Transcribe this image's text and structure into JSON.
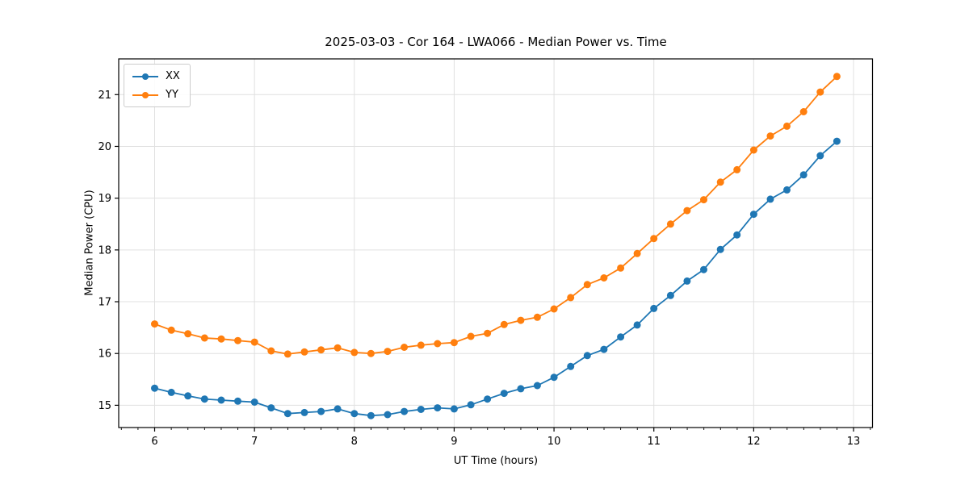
{
  "chart_data": {
    "type": "line",
    "title": "2025-03-03 - Cor 164 - LWA066 - Median Power vs. Time",
    "xlabel": "UT Time (hours)",
    "ylabel": "Median Power (CPU)",
    "xlim": [
      5.64,
      13.19
    ],
    "ylim": [
      14.57,
      21.69
    ],
    "x_ticks": [
      6,
      7,
      8,
      9,
      10,
      11,
      12,
      13
    ],
    "y_ticks": [
      15,
      16,
      17,
      18,
      19,
      20,
      21
    ],
    "x_minor_tick_step": 0.1667,
    "grid": true,
    "legend_position": "upper-left",
    "x": [
      6.0,
      6.167,
      6.333,
      6.5,
      6.667,
      6.833,
      7.0,
      7.167,
      7.333,
      7.5,
      7.667,
      7.833,
      8.0,
      8.167,
      8.333,
      8.5,
      8.667,
      8.833,
      9.0,
      9.167,
      9.333,
      9.5,
      9.667,
      9.833,
      10.0,
      10.167,
      10.333,
      10.5,
      10.667,
      10.833,
      11.0,
      11.167,
      11.333,
      11.5,
      11.667,
      11.833,
      12.0,
      12.167,
      12.333,
      12.5,
      12.667,
      12.833
    ],
    "series": [
      {
        "name": "XX",
        "color": "#1f77b4",
        "values": [
          15.33,
          15.25,
          15.18,
          15.12,
          15.1,
          15.08,
          15.06,
          14.95,
          14.84,
          14.86,
          14.88,
          14.93,
          14.84,
          14.8,
          14.82,
          14.88,
          14.92,
          14.95,
          14.93,
          15.01,
          15.12,
          15.23,
          15.32,
          15.38,
          15.54,
          15.75,
          15.96,
          16.08,
          16.32,
          16.55,
          16.87,
          17.12,
          17.4,
          17.62,
          18.01,
          18.29,
          18.69,
          18.98,
          19.16,
          19.45,
          19.82,
          20.1
        ]
      },
      {
        "name": "YY",
        "color": "#ff7f0e",
        "values": [
          16.57,
          16.45,
          16.38,
          16.3,
          16.28,
          16.25,
          16.22,
          16.05,
          15.99,
          16.03,
          16.07,
          16.11,
          16.02,
          16.0,
          16.04,
          16.12,
          16.16,
          16.19,
          16.21,
          16.33,
          16.39,
          16.56,
          16.64,
          16.7,
          16.86,
          17.08,
          17.33,
          17.46,
          17.65,
          17.93,
          18.22,
          18.5,
          18.76,
          18.97,
          19.31,
          19.55,
          19.93,
          20.2,
          20.39,
          20.67,
          21.05,
          21.35
        ]
      }
    ],
    "style": {
      "grid_color": "#e0e0e0",
      "spine_color": "#000000",
      "tick_label_color": "#000000",
      "marker_radius": 4.5,
      "line_width": 1.8
    }
  }
}
